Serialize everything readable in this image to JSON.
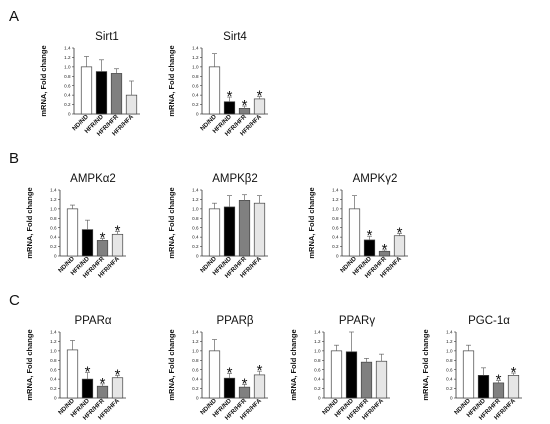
{
  "figure": {
    "panels": [
      "A",
      "B",
      "C"
    ]
  },
  "chart_data": [
    {
      "type": "bar",
      "title": "Sirt1",
      "panel": "A",
      "ylabel": "mRNA, Fold change",
      "ylim": [
        0,
        1.4
      ],
      "yticks": [
        "0",
        "0.2",
        "0.4",
        "0.6",
        "0.8",
        "1.0",
        "1.2",
        "1.4"
      ],
      "categories": [
        "ND/ND",
        "HFR/ND",
        "HFR/HFR",
        "HFR/HFA"
      ],
      "values": [
        1.0,
        0.9,
        0.86,
        0.4
      ],
      "errors": [
        0.22,
        0.25,
        0.1,
        0.3
      ],
      "significant": [
        "",
        "",
        "",
        ""
      ],
      "colors": [
        "#ffffff",
        "#000000",
        "#808080",
        "#e6e6e6"
      ]
    },
    {
      "type": "bar",
      "title": "Sirt4",
      "panel": "",
      "ylabel": "mRNA, Fold change",
      "ylim": [
        0,
        1.4
      ],
      "yticks": [
        "0",
        "0.2",
        "0.4",
        "0.6",
        "0.8",
        "1.0",
        "1.2",
        "1.4"
      ],
      "categories": [
        "ND/ND",
        "HFR/ND",
        "HFR/HFR",
        "HFR/HFA"
      ],
      "values": [
        1.0,
        0.26,
        0.12,
        0.32
      ],
      "errors": [
        0.28,
        0.1,
        0.05,
        0.05
      ],
      "significant": [
        "",
        "*",
        "*",
        "*"
      ],
      "colors": [
        "#ffffff",
        "#000000",
        "#808080",
        "#e6e6e6"
      ]
    },
    {
      "type": "bar",
      "title": "AMPKα2",
      "panel": "B",
      "ylabel": "mRNA, Fold change",
      "ylim": [
        0,
        1.4
      ],
      "yticks": [
        "0",
        "0.2",
        "0.4",
        "0.6",
        "0.8",
        "1.0",
        "1.2",
        "1.4"
      ],
      "categories": [
        "ND/ND",
        "HFR/ND",
        "HFR/HFR",
        "HFR/HFA"
      ],
      "values": [
        1.0,
        0.56,
        0.33,
        0.46
      ],
      "errors": [
        0.08,
        0.2,
        0.04,
        0.06
      ],
      "significant": [
        "",
        "",
        "*",
        "*"
      ],
      "colors": [
        "#ffffff",
        "#000000",
        "#808080",
        "#e6e6e6"
      ]
    },
    {
      "type": "bar",
      "title": "AMPKβ2",
      "panel": "",
      "ylabel": "mRNA, Fold change",
      "ylim": [
        0,
        1.4
      ],
      "yticks": [
        "0",
        "0.2",
        "0.4",
        "0.6",
        "0.8",
        "1.0",
        "1.2",
        "1.4"
      ],
      "categories": [
        "ND/ND",
        "HFR/ND",
        "HFR/HFR",
        "HFR/HFA"
      ],
      "values": [
        1.0,
        1.04,
        1.18,
        1.12
      ],
      "errors": [
        0.12,
        0.24,
        0.12,
        0.16
      ],
      "significant": [
        "",
        "",
        "",
        ""
      ],
      "colors": [
        "#ffffff",
        "#000000",
        "#808080",
        "#e6e6e6"
      ]
    },
    {
      "type": "bar",
      "title": "AMPKγ2",
      "panel": "",
      "ylabel": "mRNA, Fold change",
      "ylim": [
        0,
        1.4
      ],
      "yticks": [
        "0",
        "0.2",
        "0.4",
        "0.6",
        "0.8",
        "1.0",
        "1.2",
        "1.4"
      ],
      "categories": [
        "ND/ND",
        "HFR/ND",
        "HFR/HFR",
        "HFR/HFA"
      ],
      "values": [
        1.0,
        0.34,
        0.1,
        0.43
      ],
      "errors": [
        0.28,
        0.08,
        0.03,
        0.05
      ],
      "significant": [
        "",
        "*",
        "*",
        "*"
      ],
      "colors": [
        "#ffffff",
        "#000000",
        "#808080",
        "#e6e6e6"
      ]
    },
    {
      "type": "bar",
      "title": "PPARα",
      "panel": "C",
      "ylabel": "mRNA, Fold change",
      "ylim": [
        0,
        1.4
      ],
      "yticks": [
        "0",
        "0.2",
        "0.4",
        "0.6",
        "0.8",
        "1.0",
        "1.2",
        "1.4"
      ],
      "categories": [
        "ND/ND",
        "HFR/ND",
        "HFR/HFR",
        "HFR/HFA"
      ],
      "values": [
        1.02,
        0.4,
        0.25,
        0.43
      ],
      "errors": [
        0.2,
        0.14,
        0.05,
        0.05
      ],
      "significant": [
        "",
        "*",
        "*",
        "*"
      ],
      "colors": [
        "#ffffff",
        "#000000",
        "#808080",
        "#e6e6e6"
      ]
    },
    {
      "type": "bar",
      "title": "PPARβ",
      "panel": "",
      "ylabel": "mRNA, Fold change",
      "ylim": [
        0,
        1.4
      ],
      "yticks": [
        "0",
        "0.2",
        "0.4",
        "0.6",
        "0.8",
        "1.0",
        "1.2",
        "1.4"
      ],
      "categories": [
        "ND/ND",
        "HFR/ND",
        "HFR/HFR",
        "HFR/HFA"
      ],
      "values": [
        1.0,
        0.42,
        0.23,
        0.49
      ],
      "errors": [
        0.24,
        0.1,
        0.06,
        0.08
      ],
      "significant": [
        "",
        "*",
        "*",
        "*"
      ],
      "colors": [
        "#ffffff",
        "#000000",
        "#808080",
        "#e6e6e6"
      ]
    },
    {
      "type": "bar",
      "title": "PPARγ",
      "panel": "",
      "ylabel": "mRNA, Fold change",
      "ylim": [
        0,
        1.4
      ],
      "yticks": [
        "0",
        "0.2",
        "0.4",
        "0.6",
        "0.8",
        "1.0",
        "1.2",
        "1.4"
      ],
      "categories": [
        "ND/ND",
        "HFR/ND",
        "HFR/HFR",
        "HFR/HFA"
      ],
      "values": [
        1.0,
        0.98,
        0.76,
        0.78
      ],
      "errors": [
        0.12,
        0.42,
        0.08,
        0.15
      ],
      "significant": [
        "",
        "",
        "",
        ""
      ],
      "colors": [
        "#ffffff",
        "#000000",
        "#808080",
        "#e6e6e6"
      ]
    },
    {
      "type": "bar",
      "title": "PGC-1α",
      "panel": "",
      "ylabel": "mRNA, Fold change",
      "ylim": [
        0,
        1.4
      ],
      "yticks": [
        "0",
        "0.2",
        "0.4",
        "0.6",
        "0.8",
        "1.0",
        "1.2",
        "1.4"
      ],
      "categories": [
        "ND/ND",
        "HFR/ND",
        "HFR/HFR",
        "HFR/HFA"
      ],
      "values": [
        1.0,
        0.48,
        0.32,
        0.48
      ],
      "errors": [
        0.12,
        0.16,
        0.05,
        0.05
      ],
      "significant": [
        "",
        "",
        "*",
        "*"
      ],
      "colors": [
        "#ffffff",
        "#000000",
        "#808080",
        "#e6e6e6"
      ]
    }
  ]
}
